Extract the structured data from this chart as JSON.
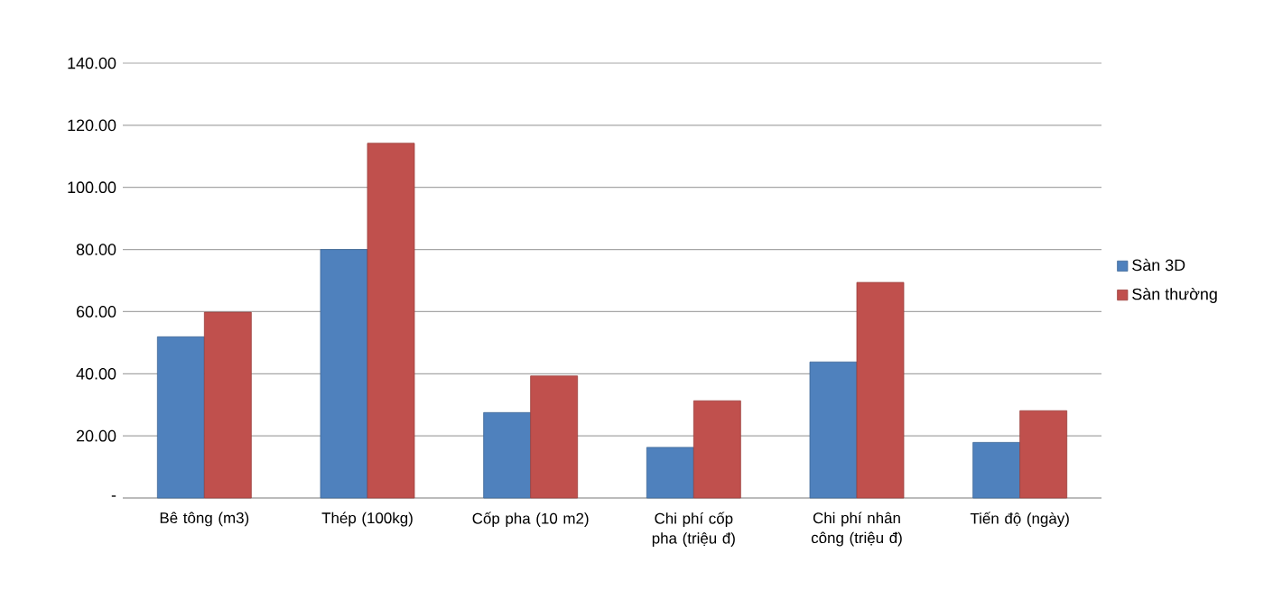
{
  "chart_data": {
    "type": "bar",
    "categories": [
      "Bê tông (m3)",
      "Thép (100kg)",
      "Cốp pha (10 m2)",
      "Chi phí cốp pha (triệu đ)",
      "Chi phí nhân công (triệu đ)",
      "Tiến độ (ngày)"
    ],
    "series": [
      {
        "name": "Sàn 3D",
        "color": "#4f81bd",
        "values": [
          51.9,
          80,
          27.5,
          16.3,
          43.8,
          17.9
        ]
      },
      {
        "name": "Sàn thường",
        "color": "#c0504d",
        "values": [
          59.8,
          114.2,
          39.3,
          31.3,
          69.4,
          28.1
        ]
      }
    ],
    "ylim": [
      0,
      140
    ],
    "yticks": [
      {
        "value": 0,
        "label": "-"
      },
      {
        "value": 20,
        "label": "20.00"
      },
      {
        "value": 40,
        "label": "40.00"
      },
      {
        "value": 60,
        "label": "60.00"
      },
      {
        "value": 80,
        "label": "80.00"
      },
      {
        "value": 100,
        "label": "100.00"
      },
      {
        "value": 120,
        "label": "120.00"
      },
      {
        "value": 140,
        "label": "140.00"
      }
    ],
    "grid": "y",
    "legend": "right"
  }
}
